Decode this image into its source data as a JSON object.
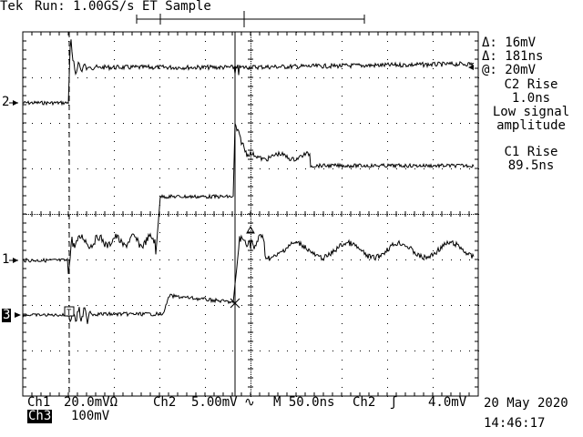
{
  "header": {
    "brand": "Tek",
    "status": "Run: 1.00GS/s ET Sample"
  },
  "channel_markers": {
    "ch2": "2",
    "ch1": "1",
    "ch3": "3"
  },
  "cursor_readout": {
    "delta_v": "Δ: 16mV",
    "delta_t": "Δ: 181ns",
    "at_v": "@: 20mV"
  },
  "measurements": {
    "m1_label": "C2 Rise",
    "m1_value": "1.0ns",
    "m1_note1": "Low signal",
    "m1_note2": "amplitude",
    "m2_label": "C1 Rise",
    "m2_value": "89.5ns"
  },
  "footer": {
    "ch1_label": "Ch1",
    "ch1_scale": "20.0mVΩ",
    "ch2_label": "Ch2",
    "ch2_scale": "5.00mV",
    "ch2_coupling": "∿",
    "timebase": "M 50.0ns",
    "trig_src": "Ch2",
    "trig_slope": "ʃ",
    "trig_level": "4.0mV",
    "ch3_label": "Ch3",
    "ch3_scale": "100mV",
    "date": "20 May 2020",
    "time": "14:46:17"
  },
  "colors": {
    "background": "#ffffff",
    "trace": "#000000"
  }
}
